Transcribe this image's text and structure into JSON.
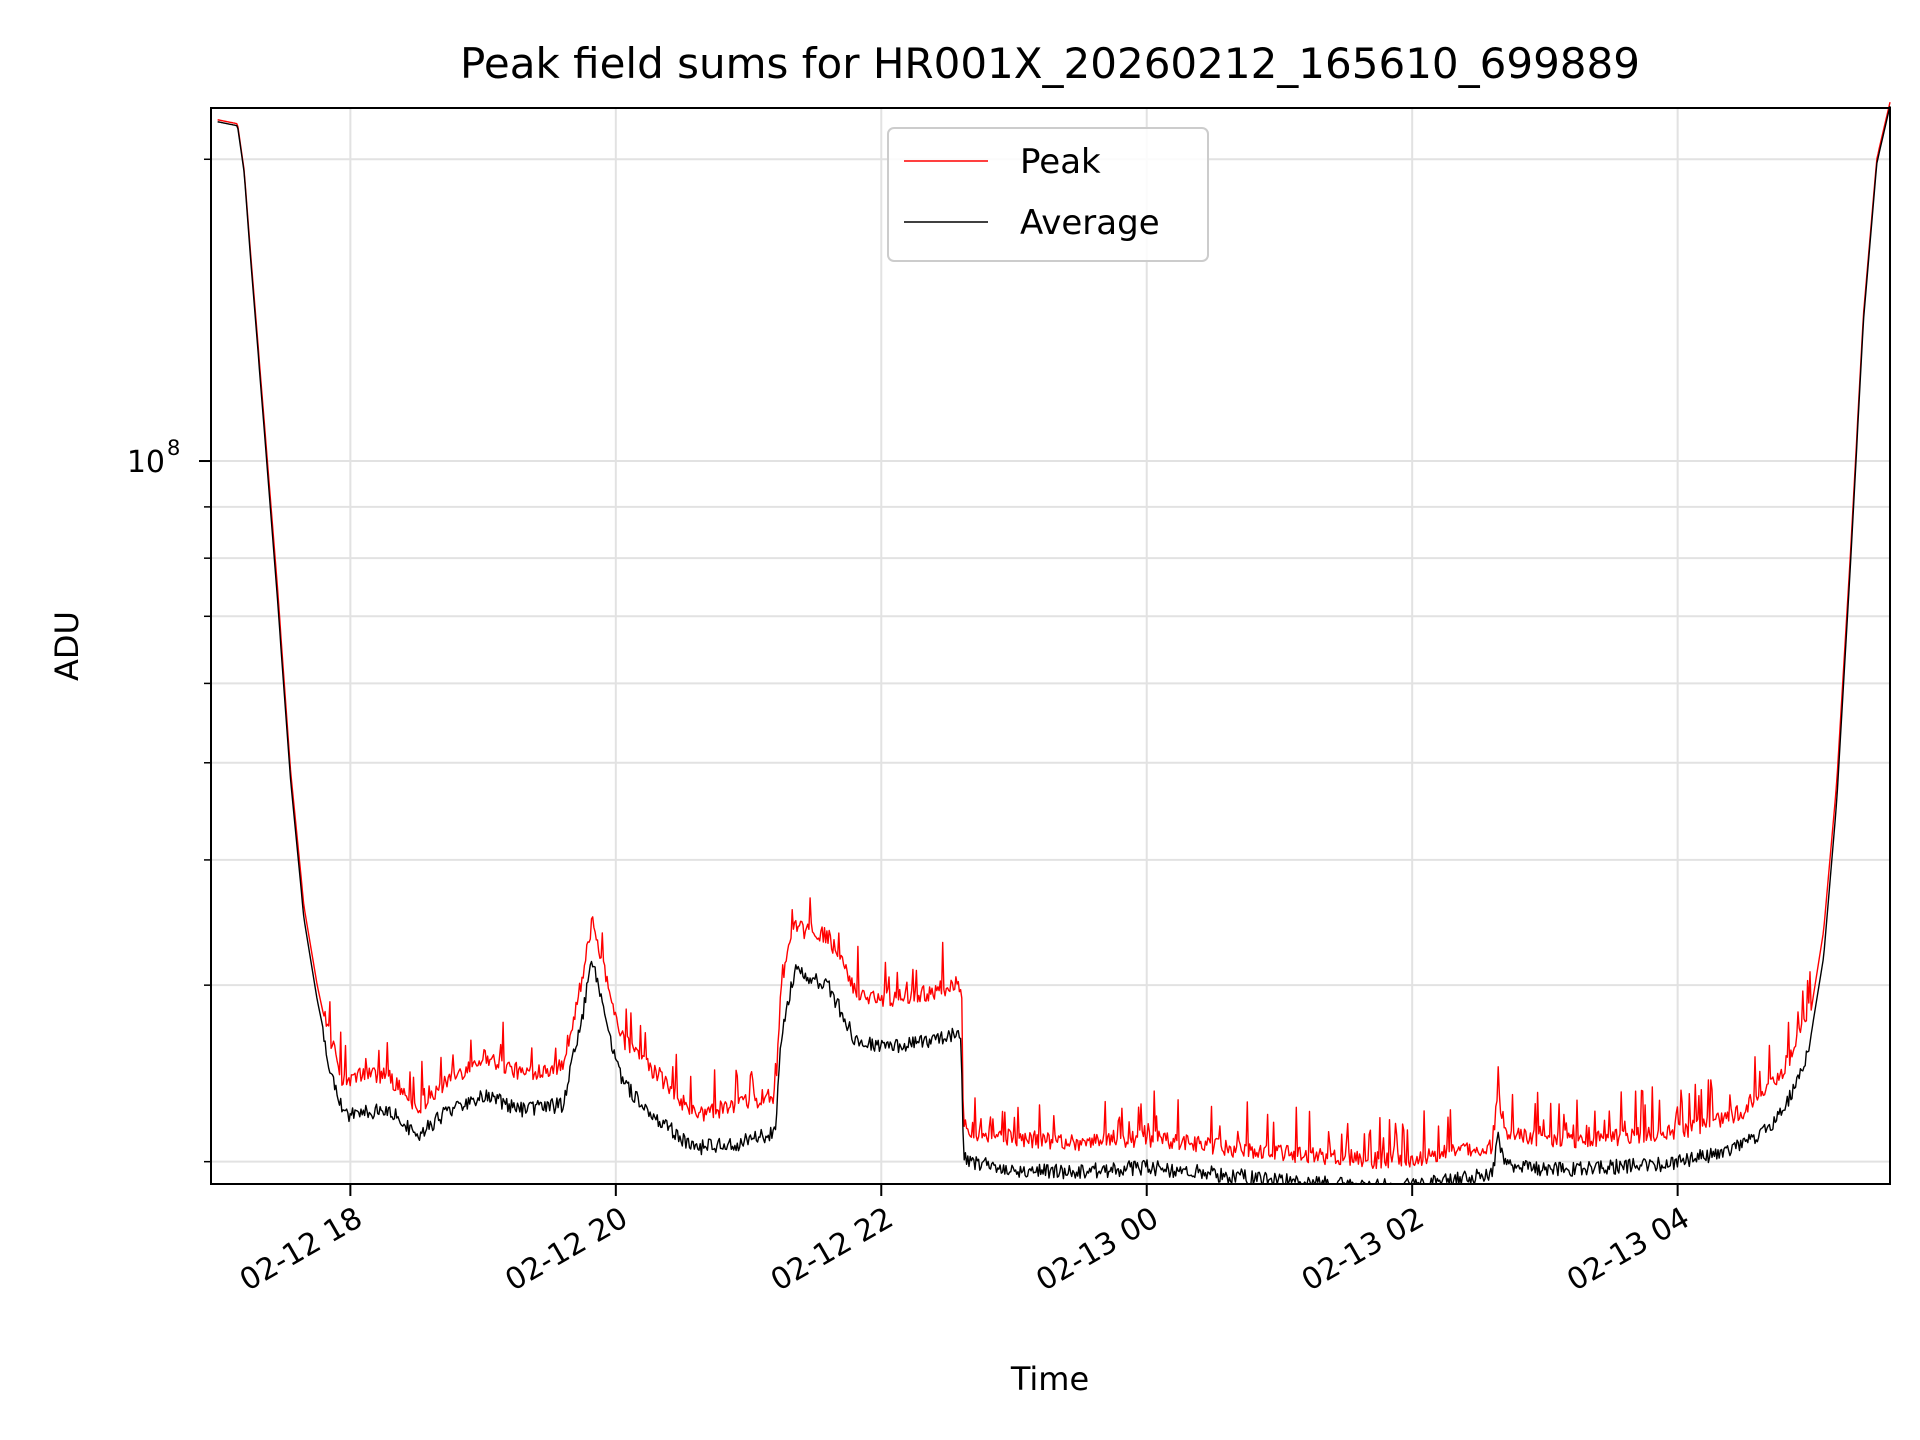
{
  "chart_data": {
    "type": "line",
    "title": "Peak field sums for HR001X_20260212_165610_699889",
    "xlabel": "Time",
    "ylabel": "ADU",
    "yscale": "log",
    "ylim": [
      19000000,
      225000000
    ],
    "xlim_hours": [
      16.95,
      29.6
    ],
    "x_unit": "hours since 02-12 00:00",
    "grid": true,
    "legend_position": "upper center",
    "x_ticks": [
      {
        "value": 18,
        "label": "02-12 18"
      },
      {
        "value": 20,
        "label": "02-12 20"
      },
      {
        "value": 22,
        "label": "02-12 22"
      },
      {
        "value": 24,
        "label": "02-13 00"
      },
      {
        "value": 26,
        "label": "02-13 02"
      },
      {
        "value": 28,
        "label": "02-13 04"
      }
    ],
    "y_major_ticks": [
      {
        "value": 100000000,
        "base": "10",
        "exponent": "8"
      }
    ],
    "y_minor_ticks": [
      20000000,
      30000000,
      40000000,
      50000000,
      60000000,
      70000000,
      80000000,
      90000000,
      200000000
    ],
    "series": [
      {
        "name": "Peak",
        "color": "#ff0000",
        "x": [
          17.0,
          17.15,
          17.2,
          17.25,
          17.35,
          17.45,
          17.55,
          17.65,
          17.75,
          17.85,
          17.95,
          18.1,
          18.3,
          18.5,
          18.7,
          19.0,
          19.3,
          19.6,
          19.75,
          19.82,
          19.9,
          20.05,
          20.3,
          20.6,
          20.9,
          21.2,
          21.25,
          21.35,
          21.6,
          21.8,
          22.0,
          22.3,
          22.6,
          22.62,
          22.7,
          23.0,
          23.5,
          24.0,
          24.5,
          25.0,
          25.5,
          25.9,
          26.3,
          26.6,
          26.65,
          26.7,
          27.0,
          27.5,
          28.0,
          28.5,
          28.8,
          29.0,
          29.1,
          29.2,
          29.3,
          29.4,
          29.5,
          29.6
        ],
        "y": [
          219000000,
          217000000,
          195000000,
          160000000,
          110000000,
          75000000,
          49000000,
          36000000,
          30000000,
          26000000,
          23500000,
          24000000,
          23800000,
          22200000,
          23400000,
          25000000,
          24000000,
          24500000,
          30000000,
          34000000,
          31000000,
          26000000,
          24000000,
          21800000,
          22300000,
          22800000,
          30000000,
          33500000,
          33000000,
          29000000,
          28500000,
          28800000,
          29500000,
          21500000,
          21000000,
          20700000,
          20500000,
          20700000,
          20300000,
          20000000,
          19800000,
          19600000,
          20000000,
          20300000,
          23000000,
          21000000,
          20600000,
          20700000,
          21000000,
          22000000,
          24000000,
          28000000,
          34000000,
          48000000,
          80000000,
          140000000,
          200000000,
          228000000
        ]
      },
      {
        "name": "Average",
        "color": "#000000",
        "x": [
          17.0,
          17.15,
          17.2,
          17.25,
          17.35,
          17.45,
          17.55,
          17.65,
          17.75,
          17.85,
          17.95,
          18.1,
          18.3,
          18.5,
          18.7,
          19.0,
          19.3,
          19.6,
          19.75,
          19.82,
          19.9,
          20.05,
          20.3,
          20.6,
          20.9,
          21.2,
          21.25,
          21.35,
          21.6,
          21.8,
          22.0,
          22.3,
          22.6,
          22.62,
          22.7,
          23.0,
          23.5,
          24.0,
          24.5,
          25.0,
          25.5,
          25.9,
          26.3,
          26.6,
          26.65,
          26.7,
          27.0,
          27.5,
          28.0,
          28.5,
          28.8,
          29.0,
          29.1,
          29.2,
          29.3,
          29.4,
          29.5,
          29.6
        ],
        "y": [
          218000000,
          216000000,
          194000000,
          158000000,
          108000000,
          73000000,
          48000000,
          35000000,
          29000000,
          25000000,
          22700000,
          22800000,
          22900000,
          21600000,
          22700000,
          23700000,
          22900000,
          23200000,
          28500000,
          32500000,
          29000000,
          24400000,
          22500000,
          21000000,
          21200000,
          21800000,
          27500000,
          31500000,
          30500000,
          27000000,
          26500000,
          26800000,
          27300000,
          20700000,
          20300000,
          20000000,
          19900000,
          20100000,
          19800000,
          19500000,
          19300000,
          19200000,
          19500000,
          19800000,
          21500000,
          20300000,
          20000000,
          20100000,
          20300000,
          21100000,
          22800000,
          26500000,
          32000000,
          46000000,
          78000000,
          138000000,
          198000000,
          226000000
        ]
      }
    ]
  }
}
